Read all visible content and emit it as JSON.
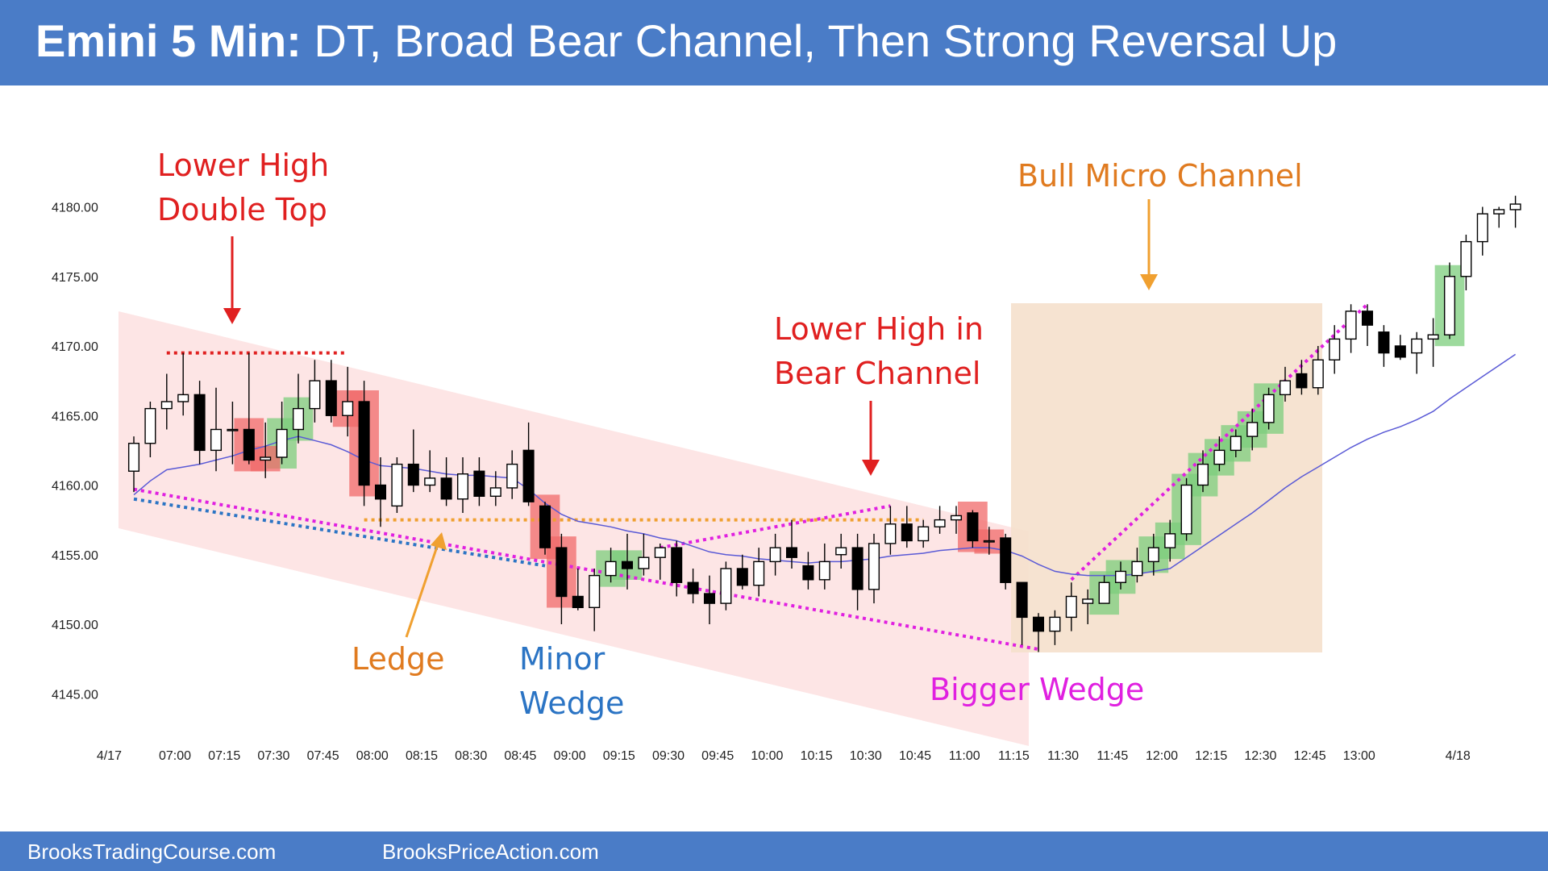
{
  "header": {
    "title_bold": "Emini 5 Min:",
    "title_rest": " DT, Broad Bear Channel, Then Strong Reversal Up"
  },
  "footer": {
    "left_link": "BrooksTradingCourse.com",
    "right_link": "BrooksPriceAction.com"
  },
  "colors": {
    "header_bg": "#4a7cc7",
    "bull_body": "#ffffff",
    "bear_body": "#000000",
    "ma_line": "#5a5ad6",
    "bear_channel_fill": "#fde0e0",
    "micro_channel_fill": "#f5e0cc",
    "highlight_green": "#7ccd7c",
    "highlight_red": "#f06a6a",
    "annotation_red": "#e02020",
    "annotation_orange": "#e07b20",
    "annotation_blue": "#2b74c4",
    "annotation_magenta": "#e020e0"
  },
  "annotations": {
    "lower_high_dt_line1": "Lower High",
    "lower_high_dt_line2": "Double Top",
    "bull_micro_channel": "Bull Micro Channel",
    "lower_high_bear_line1": "Lower High in",
    "lower_high_bear_line2": "Bear Channel",
    "ledge": "Ledge",
    "minor_wedge_line1": "Minor",
    "minor_wedge_line2": "Wedge",
    "bigger_wedge": "Bigger Wedge"
  },
  "chart_data": {
    "type": "candlestick",
    "symbol": "Emini",
    "timeframe": "5 Min",
    "ylim": [
      4143,
      4182
    ],
    "y_ticks": [
      "4145.00",
      "4150.00",
      "4155.00",
      "4160.00",
      "4165.00",
      "4170.00",
      "4175.00",
      "4180.00"
    ],
    "x_ticks": [
      "4/17",
      "07:00",
      "07:15",
      "07:30",
      "07:45",
      "08:00",
      "08:15",
      "08:30",
      "08:45",
      "09:00",
      "09:15",
      "09:30",
      "09:45",
      "10:00",
      "10:15",
      "10:30",
      "10:45",
      "11:00",
      "11:15",
      "11:30",
      "11:45",
      "12:00",
      "12:15",
      "12:30",
      "12:45",
      "13:00",
      "4/18"
    ],
    "bars": [
      {
        "o": 4161.0,
        "h": 4163.5,
        "l": 4159.5,
        "c": 4163.0
      },
      {
        "o": 4163.0,
        "h": 4166.0,
        "l": 4162.0,
        "c": 4165.5
      },
      {
        "o": 4165.5,
        "h": 4168.0,
        "l": 4164.0,
        "c": 4166.0
      },
      {
        "o": 4166.0,
        "h": 4169.5,
        "l": 4165.0,
        "c": 4166.5
      },
      {
        "o": 4166.5,
        "h": 4167.5,
        "l": 4161.5,
        "c": 4162.5
      },
      {
        "o": 4162.5,
        "h": 4167.0,
        "l": 4161.0,
        "c": 4164.0
      },
      {
        "o": 4164.0,
        "h": 4166.0,
        "l": 4161.5,
        "c": 4164.0
      },
      {
        "o": 4164.0,
        "h": 4169.5,
        "l": 4161.5,
        "c": 4161.8
      },
      {
        "o": 4161.8,
        "h": 4164.5,
        "l": 4160.5,
        "c": 4162.0
      },
      {
        "o": 4162.0,
        "h": 4166.0,
        "l": 4161.5,
        "c": 4164.0
      },
      {
        "o": 4164.0,
        "h": 4168.0,
        "l": 4163.0,
        "c": 4165.5
      },
      {
        "o": 4165.5,
        "h": 4169.0,
        "l": 4164.5,
        "c": 4167.5
      },
      {
        "o": 4167.5,
        "h": 4169.0,
        "l": 4164.5,
        "c": 4165.0
      },
      {
        "o": 4165.0,
        "h": 4168.5,
        "l": 4163.5,
        "c": 4166.0
      },
      {
        "o": 4166.0,
        "h": 4167.5,
        "l": 4158.5,
        "c": 4160.0
      },
      {
        "o": 4160.0,
        "h": 4162.0,
        "l": 4157.0,
        "c": 4159.0
      },
      {
        "o": 4158.5,
        "h": 4162.0,
        "l": 4158.0,
        "c": 4161.5
      },
      {
        "o": 4161.5,
        "h": 4164.0,
        "l": 4159.5,
        "c": 4160.0
      },
      {
        "o": 4160.0,
        "h": 4162.5,
        "l": 4159.5,
        "c": 4160.5
      },
      {
        "o": 4160.5,
        "h": 4162.0,
        "l": 4158.5,
        "c": 4159.0
      },
      {
        "o": 4159.0,
        "h": 4162.0,
        "l": 4158.0,
        "c": 4160.8
      },
      {
        "o": 4161.0,
        "h": 4162.0,
        "l": 4158.5,
        "c": 4159.2
      },
      {
        "o": 4159.2,
        "h": 4161.0,
        "l": 4158.5,
        "c": 4159.8
      },
      {
        "o": 4159.8,
        "h": 4162.5,
        "l": 4159.0,
        "c": 4161.5
      },
      {
        "o": 4162.5,
        "h": 4164.5,
        "l": 4158.5,
        "c": 4158.8
      },
      {
        "o": 4158.5,
        "h": 4158.8,
        "l": 4155.0,
        "c": 4155.5
      },
      {
        "o": 4155.5,
        "h": 4156.5,
        "l": 4150.0,
        "c": 4152.0
      },
      {
        "o": 4152.0,
        "h": 4154.0,
        "l": 4151.0,
        "c": 4151.2
      },
      {
        "o": 4151.2,
        "h": 4154.0,
        "l": 4149.5,
        "c": 4153.5
      },
      {
        "o": 4153.5,
        "h": 4155.5,
        "l": 4153.0,
        "c": 4154.5
      },
      {
        "o": 4154.5,
        "h": 4156.5,
        "l": 4152.5,
        "c": 4154.0
      },
      {
        "o": 4154.0,
        "h": 4156.5,
        "l": 4153.5,
        "c": 4154.8
      },
      {
        "o": 4154.8,
        "h": 4155.8,
        "l": 4153.2,
        "c": 4155.5
      },
      {
        "o": 4155.5,
        "h": 4156.0,
        "l": 4152.0,
        "c": 4153.0
      },
      {
        "o": 4153.0,
        "h": 4154.0,
        "l": 4151.5,
        "c": 4152.2
      },
      {
        "o": 4152.2,
        "h": 4153.5,
        "l": 4150.0,
        "c": 4151.5
      },
      {
        "o": 4151.5,
        "h": 4154.5,
        "l": 4151.0,
        "c": 4154.0
      },
      {
        "o": 4154.0,
        "h": 4155.0,
        "l": 4152.5,
        "c": 4152.8
      },
      {
        "o": 4152.8,
        "h": 4155.5,
        "l": 4152.0,
        "c": 4154.5
      },
      {
        "o": 4154.5,
        "h": 4156.5,
        "l": 4153.5,
        "c": 4155.5
      },
      {
        "o": 4155.5,
        "h": 4157.5,
        "l": 4154.0,
        "c": 4154.8
      },
      {
        "o": 4154.2,
        "h": 4155.2,
        "l": 4152.5,
        "c": 4153.2
      },
      {
        "o": 4153.2,
        "h": 4155.8,
        "l": 4152.5,
        "c": 4154.5
      },
      {
        "o": 4155.0,
        "h": 4156.5,
        "l": 4154.0,
        "c": 4155.5
      },
      {
        "o": 4155.5,
        "h": 4156.5,
        "l": 4151.0,
        "c": 4152.5
      },
      {
        "o": 4152.5,
        "h": 4156.5,
        "l": 4151.5,
        "c": 4155.8
      },
      {
        "o": 4155.8,
        "h": 4158.5,
        "l": 4155.0,
        "c": 4157.2
      },
      {
        "o": 4157.2,
        "h": 4158.5,
        "l": 4155.5,
        "c": 4156.0
      },
      {
        "o": 4156.0,
        "h": 4157.5,
        "l": 4155.5,
        "c": 4157.0
      },
      {
        "o": 4157.0,
        "h": 4158.5,
        "l": 4156.5,
        "c": 4157.5
      },
      {
        "o": 4157.5,
        "h": 4158.5,
        "l": 4156.5,
        "c": 4157.8
      },
      {
        "o": 4158.0,
        "h": 4158.2,
        "l": 4155.5,
        "c": 4156.0
      },
      {
        "o": 4156.0,
        "h": 4157.0,
        "l": 4155.0,
        "c": 4156.0
      },
      {
        "o": 4156.2,
        "h": 4156.5,
        "l": 4152.5,
        "c": 4153.0
      },
      {
        "o": 4153.0,
        "h": 4153.0,
        "l": 4148.5,
        "c": 4150.5
      },
      {
        "o": 4150.5,
        "h": 4150.8,
        "l": 4148.0,
        "c": 4149.5
      },
      {
        "o": 4149.5,
        "h": 4151.0,
        "l": 4148.5,
        "c": 4150.5
      },
      {
        "o": 4150.5,
        "h": 4153.0,
        "l": 4149.5,
        "c": 4152.0
      },
      {
        "o": 4151.5,
        "h": 4152.5,
        "l": 4150.0,
        "c": 4151.8
      },
      {
        "o": 4151.5,
        "h": 4153.5,
        "l": 4151.5,
        "c": 4153.0
      },
      {
        "o": 4153.0,
        "h": 4154.5,
        "l": 4152.5,
        "c": 4153.8
      },
      {
        "o": 4153.5,
        "h": 4155.5,
        "l": 4153.0,
        "c": 4154.5
      },
      {
        "o": 4154.5,
        "h": 4156.5,
        "l": 4153.5,
        "c": 4155.5
      },
      {
        "o": 4155.5,
        "h": 4157.5,
        "l": 4154.5,
        "c": 4156.5
      },
      {
        "o": 4156.5,
        "h": 4160.5,
        "l": 4156.0,
        "c": 4160.0
      },
      {
        "o": 4160.0,
        "h": 4162.5,
        "l": 4159.5,
        "c": 4161.5
      },
      {
        "o": 4161.5,
        "h": 4163.5,
        "l": 4161.0,
        "c": 4162.5
      },
      {
        "o": 4162.5,
        "h": 4164.0,
        "l": 4162.0,
        "c": 4163.5
      },
      {
        "o": 4163.5,
        "h": 4165.5,
        "l": 4162.5,
        "c": 4164.5
      },
      {
        "o": 4164.5,
        "h": 4167.0,
        "l": 4164.0,
        "c": 4166.5
      },
      {
        "o": 4166.5,
        "h": 4168.5,
        "l": 4166.0,
        "c": 4167.5
      },
      {
        "o": 4168.0,
        "h": 4169.0,
        "l": 4166.5,
        "c": 4167.0
      },
      {
        "o": 4167.0,
        "h": 4170.0,
        "l": 4166.5,
        "c": 4169.0
      },
      {
        "o": 4169.0,
        "h": 4171.5,
        "l": 4168.0,
        "c": 4170.5
      },
      {
        "o": 4170.5,
        "h": 4173.0,
        "l": 4169.5,
        "c": 4172.5
      },
      {
        "o": 4172.5,
        "h": 4173.0,
        "l": 4170.0,
        "c": 4171.5
      },
      {
        "o": 4171.0,
        "h": 4171.5,
        "l": 4168.5,
        "c": 4169.5
      },
      {
        "o": 4170.0,
        "h": 4170.8,
        "l": 4169.0,
        "c": 4169.2
      },
      {
        "o": 4169.5,
        "h": 4171.0,
        "l": 4168.0,
        "c": 4170.5
      },
      {
        "o": 4170.5,
        "h": 4172.0,
        "l": 4168.5,
        "c": 4170.8
      },
      {
        "o": 4170.8,
        "h": 4176.0,
        "l": 4170.5,
        "c": 4175.0
      },
      {
        "o": 4175.0,
        "h": 4178.0,
        "l": 4174.0,
        "c": 4177.5
      },
      {
        "o": 4177.5,
        "h": 4180.0,
        "l": 4176.5,
        "c": 4179.5
      },
      {
        "o": 4179.5,
        "h": 4180.0,
        "l": 4178.5,
        "c": 4179.8
      },
      {
        "o": 4179.8,
        "h": 4180.8,
        "l": 4178.5,
        "c": 4180.2
      }
    ],
    "moving_average": [
      4159.3,
      4160.3,
      4161.1,
      4161.3,
      4161.5,
      4161.8,
      4162.1,
      4162.5,
      4162.8,
      4163.2,
      4163.5,
      4163.2,
      4162.9,
      4162.4,
      4161.8,
      4161.4,
      4161.3,
      4161.2,
      4161.0,
      4160.8,
      4160.7,
      4160.7,
      4160.6,
      4160.5,
      4159.7,
      4158.7,
      4157.9,
      4157.4,
      4157.2,
      4157.0,
      4156.7,
      4156.5,
      4156.2,
      4156.0,
      4155.6,
      4155.2,
      4155.0,
      4154.9,
      4154.7,
      4154.6,
      4154.5,
      4154.4,
      4154.5,
      4154.5,
      4154.6,
      4154.7,
      4154.9,
      4155.0,
      4155.1,
      4155.3,
      4155.4,
      4155.5,
      4155.5,
      4155.3,
      4154.9,
      4154.3,
      4153.8,
      4153.6,
      4153.5,
      4153.5,
      4153.5,
      4153.6,
      4153.8,
      4154.0,
      4154.8,
      4155.6,
      4156.4,
      4157.2,
      4158.0,
      4158.9,
      4159.8,
      4160.6,
      4161.3,
      4162.0,
      4162.7,
      4163.3,
      4163.8,
      4164.2,
      4164.7,
      4165.3,
      4166.2,
      4167.0,
      4167.8,
      4168.6,
      4169.4
    ],
    "highlighted_bars": {
      "green": [
        9,
        10,
        29,
        30,
        59,
        60,
        62,
        63,
        64,
        65,
        66,
        67,
        68,
        69,
        80
      ],
      "red": [
        7,
        8,
        13,
        14,
        25,
        26,
        51,
        52
      ]
    },
    "channels": [
      {
        "label": "Broad Bear Channel",
        "type": "bear_channel_shading"
      },
      {
        "label": "Bull Micro Channel",
        "type": "micro_channel_box"
      }
    ]
  }
}
